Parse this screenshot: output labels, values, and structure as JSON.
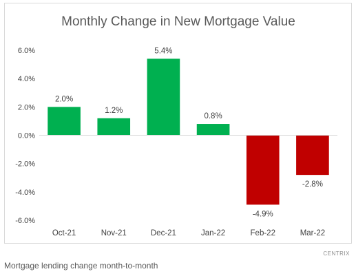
{
  "chart_data": {
    "type": "bar",
    "title": "Monthly Change in New Mortgage Value",
    "categories": [
      "Oct-21",
      "Nov-21",
      "Dec-21",
      "Jan-22",
      "Feb-22",
      "Mar-22"
    ],
    "values": [
      2.0,
      1.2,
      5.4,
      0.8,
      -4.9,
      -2.8
    ],
    "data_labels": [
      "2.0%",
      "1.2%",
      "5.4%",
      "0.8%",
      "-4.9%",
      "-2.8%"
    ],
    "y_ticks": [
      6,
      4,
      2,
      0,
      -2,
      -4,
      -6
    ],
    "y_tick_labels": [
      "6.0%",
      "4.0%",
      "2.0%",
      "0.0%",
      "-2.0%",
      "-4.0%",
      "-6.0%"
    ],
    "ylim": [
      -6,
      6
    ],
    "xlabel": "",
    "ylabel": "",
    "grid": false,
    "colors": {
      "positive": "#00b050",
      "negative": "#c00000",
      "axis": "#d9d9d9"
    }
  },
  "source": "CENTRIX",
  "caption": "Mortgage lending change month-to-month"
}
